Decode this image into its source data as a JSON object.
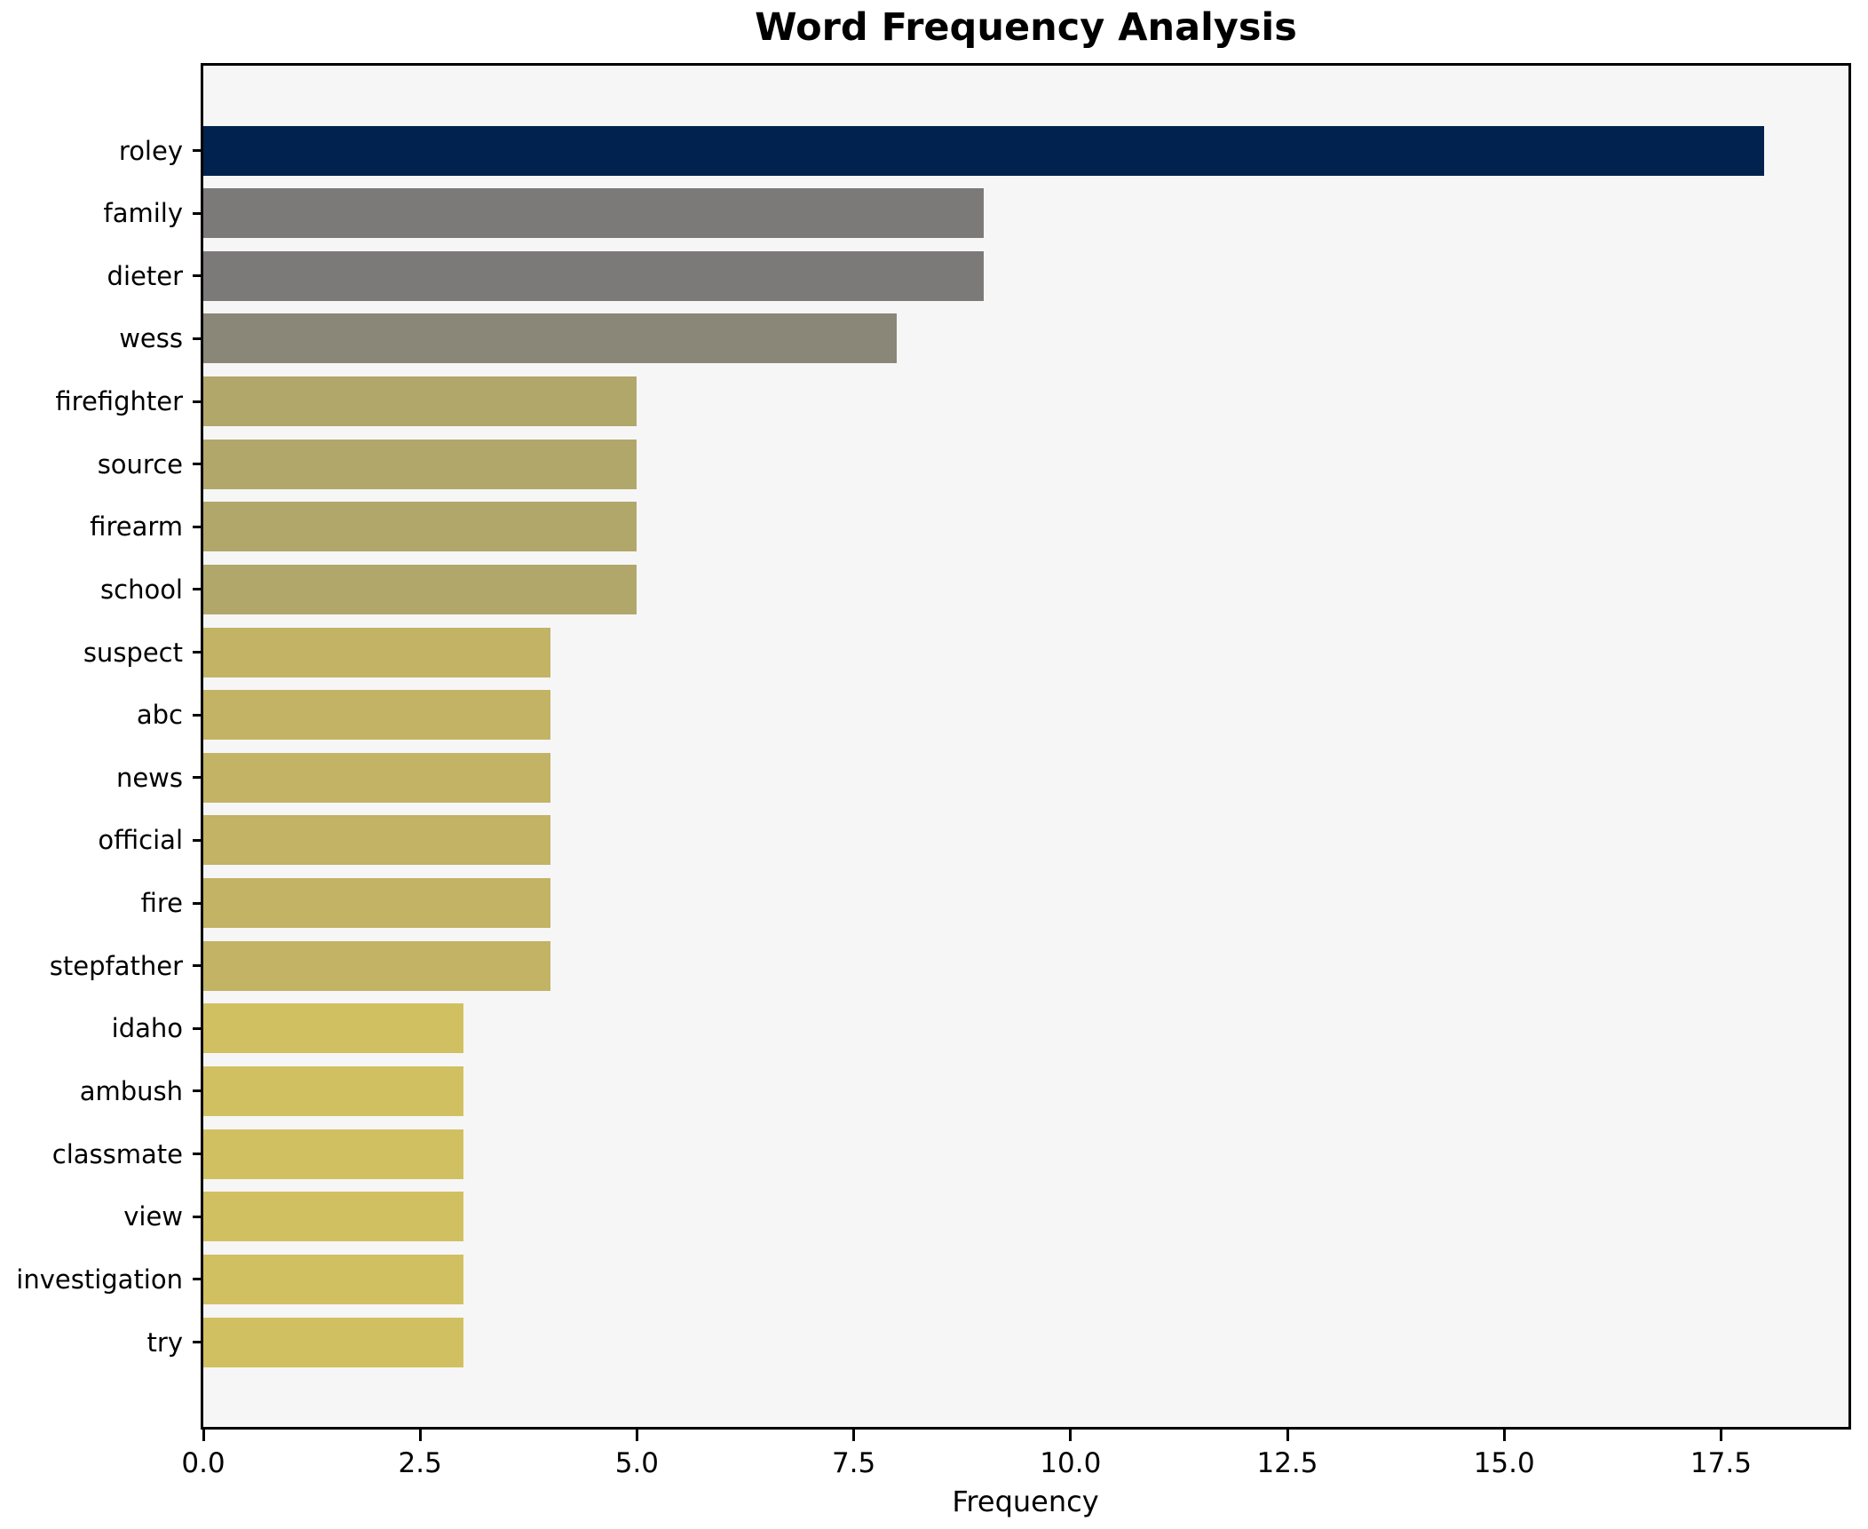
{
  "chart_data": {
    "type": "bar",
    "orientation": "horizontal",
    "title": "Word Frequency Analysis",
    "xlabel": "Frequency",
    "ylabel": "",
    "categories": [
      "roley",
      "family",
      "dieter",
      "wess",
      "firefighter",
      "source",
      "firearm",
      "school",
      "suspect",
      "abc",
      "news",
      "official",
      "fire",
      "stepfather",
      "idaho",
      "ambush",
      "classmate",
      "view",
      "investigation",
      "try"
    ],
    "values": [
      18,
      9,
      9,
      8,
      5,
      5,
      5,
      5,
      4,
      4,
      4,
      4,
      4,
      4,
      3,
      3,
      3,
      3,
      3,
      3
    ],
    "bar_colors": [
      "#01224e",
      "#7b7a78",
      "#7b7a78",
      "#8a8778",
      "#b1a76b",
      "#b1a76b",
      "#b1a76b",
      "#b1a76b",
      "#c2b365",
      "#c2b365",
      "#c2b365",
      "#c2b365",
      "#c2b365",
      "#c2b365",
      "#d1c061",
      "#d1c061",
      "#d1c061",
      "#d1c061",
      "#d1c061",
      "#d1c061"
    ],
    "xticks": [
      0.0,
      2.5,
      5.0,
      7.5,
      10.0,
      12.5,
      15.0,
      17.5
    ],
    "xtick_labels": [
      "0.0",
      "2.5",
      "5.0",
      "7.5",
      "10.0",
      "12.5",
      "15.0",
      "17.5"
    ],
    "xlim": [
      0,
      18.97
    ],
    "grid": false,
    "legend": null,
    "plot_background": "#f6f6f7",
    "figure_background": "#ffffff",
    "spine_color": "#000000",
    "title_color": "#000000",
    "tick_color": "#000000"
  }
}
